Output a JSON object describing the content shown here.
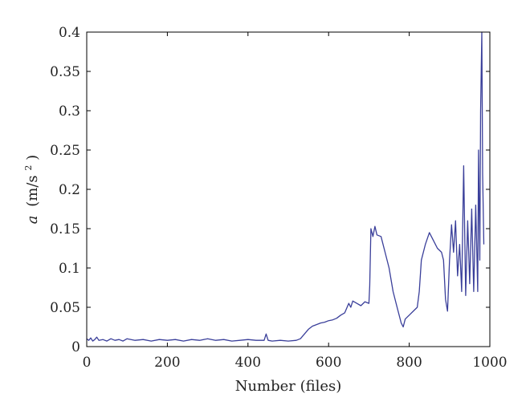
{
  "chart_data": {
    "type": "line",
    "title": "",
    "xlabel": "Number (files)",
    "ylabel_symbol": "a",
    "ylabel_unit_prefix": "(m/s",
    "ylabel_unit_exp": "2",
    "ylabel_unit_suffix": ")",
    "xlim": [
      0,
      1000
    ],
    "ylim": [
      0,
      0.4
    ],
    "xticks": [
      0,
      200,
      400,
      600,
      800,
      1000
    ],
    "xtick_labels": [
      "0",
      "200",
      "400",
      "600",
      "800",
      "1000"
    ],
    "yticks": [
      0,
      0.05,
      0.1,
      0.15,
      0.2,
      0.25,
      0.3,
      0.35,
      0.4
    ],
    "ytick_labels": [
      "0",
      "0.05",
      "0.1",
      "0.15",
      "0.2",
      "0.25",
      "0.3",
      "0.35",
      "0.4"
    ],
    "grid": false,
    "line_color": "#3a3f9a",
    "series": [
      {
        "x": [
          0,
          5,
          10,
          15,
          20,
          25,
          30,
          40,
          50,
          60,
          70,
          80,
          90,
          100,
          120,
          140,
          160,
          180,
          200,
          220,
          240,
          260,
          280,
          300,
          320,
          340,
          360,
          380,
          400,
          420,
          440,
          445,
          450,
          460,
          480,
          500,
          520,
          530,
          540,
          550,
          560,
          570,
          580,
          590,
          600,
          610,
          620,
          630,
          640,
          650,
          655,
          660,
          670,
          680,
          690,
          700,
          702,
          705,
          710,
          715,
          720,
          730,
          740,
          750,
          760,
          770,
          780,
          785,
          790,
          800,
          810,
          820,
          825,
          830,
          840,
          850,
          860,
          870,
          880,
          885,
          890,
          895,
          900,
          905,
          910,
          915,
          920,
          925,
          930,
          935,
          940,
          945,
          950,
          955,
          960,
          965,
          970,
          972,
          975,
          977,
          980,
          982,
          985
        ],
        "y": [
          0.01,
          0.008,
          0.011,
          0.007,
          0.009,
          0.012,
          0.008,
          0.009,
          0.007,
          0.01,
          0.008,
          0.009,
          0.007,
          0.01,
          0.008,
          0.009,
          0.007,
          0.009,
          0.008,
          0.009,
          0.007,
          0.009,
          0.008,
          0.01,
          0.008,
          0.009,
          0.007,
          0.008,
          0.009,
          0.008,
          0.008,
          0.016,
          0.008,
          0.007,
          0.008,
          0.007,
          0.008,
          0.01,
          0.016,
          0.022,
          0.026,
          0.028,
          0.03,
          0.031,
          0.033,
          0.034,
          0.036,
          0.04,
          0.043,
          0.055,
          0.05,
          0.058,
          0.055,
          0.052,
          0.057,
          0.055,
          0.077,
          0.15,
          0.14,
          0.153,
          0.142,
          0.14,
          0.12,
          0.1,
          0.07,
          0.05,
          0.03,
          0.025,
          0.035,
          0.04,
          0.045,
          0.05,
          0.07,
          0.11,
          0.13,
          0.145,
          0.135,
          0.125,
          0.12,
          0.11,
          0.06,
          0.045,
          0.11,
          0.155,
          0.12,
          0.16,
          0.09,
          0.13,
          0.07,
          0.23,
          0.065,
          0.16,
          0.08,
          0.175,
          0.07,
          0.18,
          0.07,
          0.25,
          0.11,
          0.3,
          0.4,
          0.22,
          0.13
        ]
      }
    ]
  }
}
